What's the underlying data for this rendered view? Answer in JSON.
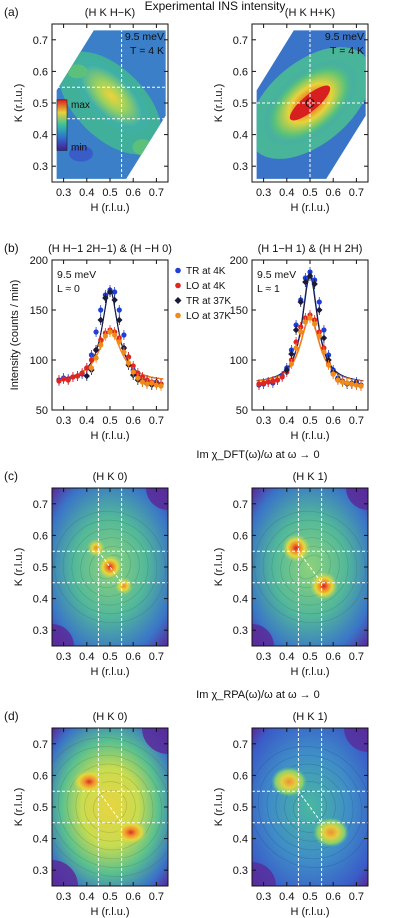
{
  "figure": {
    "title": "Experimental INS intensity",
    "section_c_caption": "Im χ_DFT(ω)/ω at ω → 0",
    "section_d_caption": "Im χ_RPA(ω)/ω at ω → 0"
  },
  "colors": {
    "TR_4K": "#1f3fd6",
    "LO_4K": "#e0261f",
    "TR_37K": "#1a1a3a",
    "LO_37K": "#f08a1a",
    "grid_lines": "#ffffff"
  },
  "chart_data": [
    {
      "type": "heatmap",
      "panel_label": "(a)",
      "title": "(H K H−K)",
      "xlabel": "H (r.l.u.)",
      "ylabel": "K (r.l.u.)",
      "xlim": [
        0.25,
        0.75
      ],
      "ylim": [
        0.25,
        0.75
      ],
      "xticks": [
        "0.3",
        "0.4",
        "0.5",
        "0.6",
        "0.7"
      ],
      "yticks": [
        "0.3",
        "0.4",
        "0.5",
        "0.6",
        "0.7"
      ],
      "annotations": [
        "9.5 meV",
        "T = 4 K"
      ],
      "colorbar": {
        "max_label": "max",
        "min_label": "min"
      },
      "reference_lines": {
        "x": [
          0.55
        ],
        "y": [
          0.45,
          0.55
        ]
      }
    },
    {
      "type": "heatmap",
      "panel_label": "",
      "title": "(H K H+K)",
      "xlabel": "H (r.l.u.)",
      "ylabel": "K (r.l.u.)",
      "xlim": [
        0.25,
        0.75
      ],
      "ylim": [
        0.25,
        0.75
      ],
      "xticks": [
        "0.3",
        "0.4",
        "0.5",
        "0.6",
        "0.7"
      ],
      "yticks": [
        "0.3",
        "0.4",
        "0.5",
        "0.6",
        "0.7"
      ],
      "annotations": [
        "9.5 meV",
        "T = 4 K"
      ],
      "reference_lines": {
        "x": [
          0.5
        ],
        "y": [
          0.5
        ]
      }
    },
    {
      "type": "scatter",
      "panel_label": "(b)",
      "title": "(H H−1 2H−1) & (H −H 0)",
      "xlabel": "H (r.l.u.)",
      "ylabel": "Intensity (counts / min)",
      "xlim": [
        0.25,
        0.75
      ],
      "ylim": [
        50,
        200
      ],
      "xticks": [
        "0.3",
        "0.4",
        "0.5",
        "0.6",
        "0.7"
      ],
      "yticks": [
        "50",
        "100",
        "150",
        "200"
      ],
      "annotations": [
        "9.5 meV",
        "L ≈ 0"
      ],
      "legend": [
        "TR at 4K",
        "LO at 4K",
        "TR at 37K",
        "LO at 37K"
      ],
      "fits": {
        "baseline": 78,
        "centers": [
          0.5,
          0.5,
          0.5,
          0.5
        ],
        "peak_heights": [
          92,
          52,
          92,
          52
        ],
        "widths": [
          0.042,
          0.058,
          0.042,
          0.058
        ]
      },
      "series": [
        {
          "name": "TR at 4K",
          "x": [
            0.28,
            0.3,
            0.32,
            0.34,
            0.36,
            0.38,
            0.4,
            0.42,
            0.44,
            0.46,
            0.48,
            0.5,
            0.52,
            0.54,
            0.56,
            0.58,
            0.6,
            0.62,
            0.64,
            0.66,
            0.68,
            0.7,
            0.72
          ],
          "y": [
            80,
            82,
            81,
            83,
            84,
            86,
            92,
            105,
            128,
            150,
            165,
            170,
            168,
            150,
            125,
            103,
            90,
            84,
            80,
            79,
            77,
            78,
            76
          ]
        },
        {
          "name": "LO at 4K",
          "x": [
            0.28,
            0.3,
            0.32,
            0.34,
            0.36,
            0.38,
            0.4,
            0.42,
            0.44,
            0.46,
            0.48,
            0.5,
            0.52,
            0.54,
            0.56,
            0.58,
            0.6,
            0.62,
            0.64,
            0.66,
            0.68,
            0.7,
            0.72
          ],
          "y": [
            79,
            81,
            80,
            83,
            84,
            87,
            92,
            100,
            110,
            120,
            127,
            130,
            128,
            122,
            112,
            103,
            94,
            87,
            83,
            80,
            78,
            77,
            76
          ]
        },
        {
          "name": "TR at 37K",
          "x": [
            0.4,
            0.42,
            0.44,
            0.46,
            0.48,
            0.5,
            0.52,
            0.54,
            0.56,
            0.58,
            0.6,
            0.62,
            0.64,
            0.66,
            0.68,
            0.7
          ],
          "y": [
            84,
            90,
            110,
            140,
            162,
            168,
            160,
            140,
            112,
            95,
            85,
            80,
            78,
            76,
            75,
            76
          ]
        },
        {
          "name": "LO at 37K",
          "x": [
            0.42,
            0.44,
            0.46,
            0.48,
            0.5,
            0.52,
            0.54,
            0.56,
            0.58,
            0.6,
            0.62,
            0.64,
            0.66,
            0.68,
            0.7,
            0.72
          ],
          "y": [
            92,
            102,
            115,
            124,
            128,
            125,
            118,
            108,
            97,
            88,
            82,
            78,
            76,
            77,
            75,
            74
          ]
        }
      ]
    },
    {
      "type": "scatter",
      "panel_label": "",
      "title": "(H 1−H 1) & (H H 2H)",
      "xlabel": "H (r.l.u.)",
      "ylabel": "",
      "xlim": [
        0.25,
        0.75
      ],
      "ylim": [
        50,
        200
      ],
      "xticks": [
        "0.3",
        "0.4",
        "0.5",
        "0.6",
        "0.7"
      ],
      "yticks": [
        "50",
        "100",
        "150",
        "200"
      ],
      "annotations": [
        "9.5 meV",
        "L ≈ 1"
      ],
      "fits": {
        "baseline": 76,
        "centers": [
          0.5,
          0.5,
          0.5,
          0.5
        ],
        "peak_heights": [
          112,
          68,
          108,
          66
        ],
        "widths": [
          0.04,
          0.05,
          0.04,
          0.05
        ]
      },
      "series": [
        {
          "name": "TR at 4K",
          "x": [
            0.28,
            0.3,
            0.32,
            0.34,
            0.36,
            0.38,
            0.4,
            0.42,
            0.44,
            0.46,
            0.48,
            0.5,
            0.52,
            0.54,
            0.56,
            0.58,
            0.6,
            0.62,
            0.64,
            0.66,
            0.68,
            0.7,
            0.72
          ],
          "y": [
            75,
            76,
            78,
            77,
            80,
            84,
            92,
            110,
            135,
            160,
            182,
            188,
            180,
            158,
            130,
            105,
            90,
            82,
            79,
            77,
            76,
            78,
            75
          ]
        },
        {
          "name": "LO at 4K",
          "x": [
            0.28,
            0.3,
            0.32,
            0.34,
            0.36,
            0.38,
            0.4,
            0.42,
            0.44,
            0.46,
            0.48,
            0.5,
            0.52,
            0.54,
            0.56,
            0.58,
            0.6,
            0.62,
            0.64,
            0.66,
            0.68,
            0.7,
            0.72
          ],
          "y": [
            76,
            77,
            78,
            79,
            80,
            83,
            88,
            100,
            118,
            133,
            142,
            145,
            140,
            128,
            112,
            96,
            86,
            80,
            78,
            77,
            76,
            75,
            74
          ]
        },
        {
          "name": "TR at 37K",
          "x": [
            0.4,
            0.42,
            0.44,
            0.46,
            0.48,
            0.5,
            0.52,
            0.54,
            0.56,
            0.58,
            0.6,
            0.62,
            0.64,
            0.66,
            0.68,
            0.7
          ],
          "y": [
            90,
            106,
            130,
            158,
            178,
            184,
            176,
            150,
            122,
            100,
            88,
            81,
            78,
            76,
            77,
            76
          ]
        },
        {
          "name": "LO at 37K",
          "x": [
            0.42,
            0.44,
            0.46,
            0.48,
            0.5,
            0.52,
            0.54,
            0.56,
            0.58,
            0.6,
            0.62,
            0.64,
            0.66,
            0.68,
            0.7,
            0.72
          ],
          "y": [
            96,
            112,
            128,
            138,
            142,
            136,
            124,
            108,
            95,
            86,
            80,
            78,
            77,
            76,
            75,
            74
          ]
        }
      ]
    },
    {
      "type": "heatmap",
      "panel_label": "(c)",
      "title": "(H K 0)",
      "xlabel": "H (r.l.u.)",
      "ylabel": "K (r.l.u.)",
      "xlim": [
        0.25,
        0.75
      ],
      "ylim": [
        0.25,
        0.75
      ],
      "xticks": [
        "0.3",
        "0.4",
        "0.5",
        "0.6",
        "0.7"
      ],
      "yticks": [
        "0.3",
        "0.4",
        "0.5",
        "0.6",
        "0.7"
      ],
      "reference_lines": {
        "x": [
          0.45,
          0.55
        ],
        "y": [
          0.45,
          0.55
        ]
      }
    },
    {
      "type": "heatmap",
      "panel_label": "",
      "title": "(H K 1)",
      "xlabel": "H (r.l.u.)",
      "ylabel": "K (r.l.u.)",
      "xlim": [
        0.25,
        0.75
      ],
      "ylim": [
        0.25,
        0.75
      ],
      "xticks": [
        "0.3",
        "0.4",
        "0.5",
        "0.6",
        "0.7"
      ],
      "yticks": [
        "0.3",
        "0.4",
        "0.5",
        "0.6",
        "0.7"
      ],
      "reference_lines": {
        "x": [
          0.45,
          0.55
        ],
        "y": [
          0.45,
          0.55
        ]
      }
    },
    {
      "type": "heatmap",
      "panel_label": "(d)",
      "title": "(H K 0)",
      "xlabel": "H (r.l.u.)",
      "ylabel": "K (r.l.u.)",
      "xlim": [
        0.25,
        0.75
      ],
      "ylim": [
        0.25,
        0.75
      ],
      "xticks": [
        "0.3",
        "0.4",
        "0.5",
        "0.6",
        "0.7"
      ],
      "yticks": [
        "0.3",
        "0.4",
        "0.5",
        "0.6",
        "0.7"
      ],
      "reference_lines": {
        "x": [
          0.45,
          0.55
        ],
        "y": [
          0.45,
          0.55
        ]
      }
    },
    {
      "type": "heatmap",
      "panel_label": "",
      "title": "(H K 1)",
      "xlabel": "H (r.l.u.)",
      "ylabel": "K (r.l.u.)",
      "xlim": [
        0.25,
        0.75
      ],
      "ylim": [
        0.25,
        0.75
      ],
      "xticks": [
        "0.3",
        "0.4",
        "0.5",
        "0.6",
        "0.7"
      ],
      "yticks": [
        "0.3",
        "0.4",
        "0.5",
        "0.6",
        "0.7"
      ],
      "reference_lines": {
        "x": [
          0.45,
          0.55
        ],
        "y": [
          0.45,
          0.55
        ]
      }
    }
  ]
}
